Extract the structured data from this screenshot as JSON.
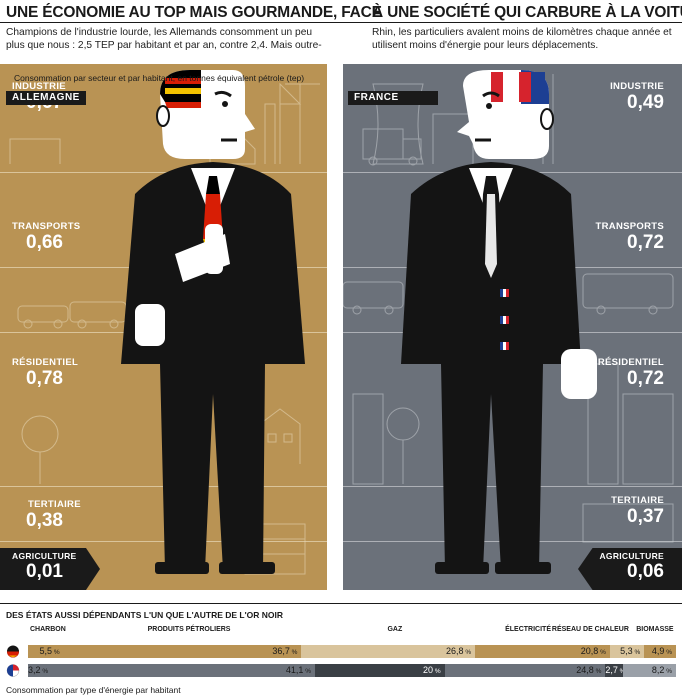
{
  "headline": {
    "left": "UNE ÉCONOMIE AU TOP MAIS GOURMANDE, FACE",
    "right": "À UNE SOCIÉTÉ QUI CARBURE À LA VOITURE"
  },
  "intro": {
    "left": "Champions de l'industrie lourde, les Allemands consomment un peu plus que nous : 2,5 TEP par habitant et par an, contre 2,4. Mais outre-",
    "right": "Rhin, les particuliers avalent moins de kilomètres chaque année et utilisent moins d'énergie pour leurs déplacements."
  },
  "consommation_note": "Consommation par secteur et par habitant, en tonnes équivalent pétrole (tep)",
  "colors": {
    "germany_panel": "#b99354",
    "france_panel": "#6b717a",
    "suit": "#141414",
    "skin": "#ffffff"
  },
  "chart_data": [
    {
      "type": "table",
      "title": "Consommation par secteur et par habitant, en tonnes équivalent pétrole (tep)",
      "columns": [
        "ALLEMAGNE",
        "FRANCE"
      ],
      "rows": [
        {
          "sector": "INDUSTRIE",
          "values": [
            "0,67",
            "0,49"
          ]
        },
        {
          "sector": "TRANSPORTS",
          "values": [
            "0,66",
            "0,72"
          ]
        },
        {
          "sector": "RÉSIDENTIEL",
          "values": [
            "0,78",
            "0,72"
          ]
        },
        {
          "sector": "TERTIAIRE",
          "values": [
            "0,38",
            "0,37"
          ]
        },
        {
          "sector": "AGRICULTURE",
          "values": [
            "0,01",
            "0,06"
          ]
        }
      ]
    },
    {
      "type": "bar",
      "stacked": true,
      "orientation": "horizontal",
      "title": "DES ÉTATS AUSSI DÉPENDANTS L'UN QUE L'AUTRE DE L'OR NOIR",
      "note": "Consommation par type d'énergie par habitant",
      "categories": [
        "CHARBON",
        "PRODUITS PÉTROLIERS",
        "GAZ",
        "ÉLECTRICITÉ",
        "RÉSEAU DE CHALEUR",
        "BIOMASSE"
      ],
      "series": [
        {
          "values": [
            5.5,
            36.7,
            26.8,
            20.8,
            5.3,
            4.9
          ],
          "labels": [
            "5,5",
            "36,7",
            "26,8",
            "20,8",
            "5,3",
            "4,9"
          ]
        },
        {
          "values": [
            3.2,
            41.1,
            20,
            24.8,
            2.7,
            8.2
          ],
          "labels": [
            "3,2",
            "41,1",
            "20",
            "24,8",
            "2,7",
            "8,2"
          ]
        }
      ],
      "unit": "%",
      "colors": {
        "germany": [
          "#b99354",
          "#b99354",
          "#d9c49c",
          "#b99354",
          "#d9c49c",
          "#b99354"
        ],
        "france": [
          "#6b717a",
          "#6b717a",
          "#3a3f45",
          "#6b717a",
          "#3a3f45",
          "#9aa0a8"
        ]
      }
    }
  ],
  "panels": {
    "germany": {
      "tag": "ALLEMAGNE",
      "sectors": [
        {
          "label": "INDUSTRIE",
          "value": "0,67"
        },
        {
          "label": "TRANSPORTS",
          "value": "0,66"
        },
        {
          "label": "RÉSIDENTIEL",
          "value": "0,78"
        },
        {
          "label": "TERTIAIRE",
          "value": "0,38"
        },
        {
          "label": "AGRICULTURE",
          "value": "0,01"
        }
      ]
    },
    "france": {
      "tag": "FRANCE",
      "sectors": [
        {
          "label": "INDUSTRIE",
          "value": "0,49"
        },
        {
          "label": "TRANSPORTS",
          "value": "0,72"
        },
        {
          "label": "RÉSIDENTIEL",
          "value": "0,72"
        },
        {
          "label": "TERTIAIRE",
          "value": "0,37"
        },
        {
          "label": "AGRICULTURE",
          "value": "0,06"
        }
      ]
    }
  },
  "bottom": {
    "title": "DES ÉTATS AUSSI DÉPENDANTS L'UN QUE L'AUTRE DE L'OR NOIR",
    "note": "Consommation par type d'énergie par habitant",
    "unit": "%"
  }
}
